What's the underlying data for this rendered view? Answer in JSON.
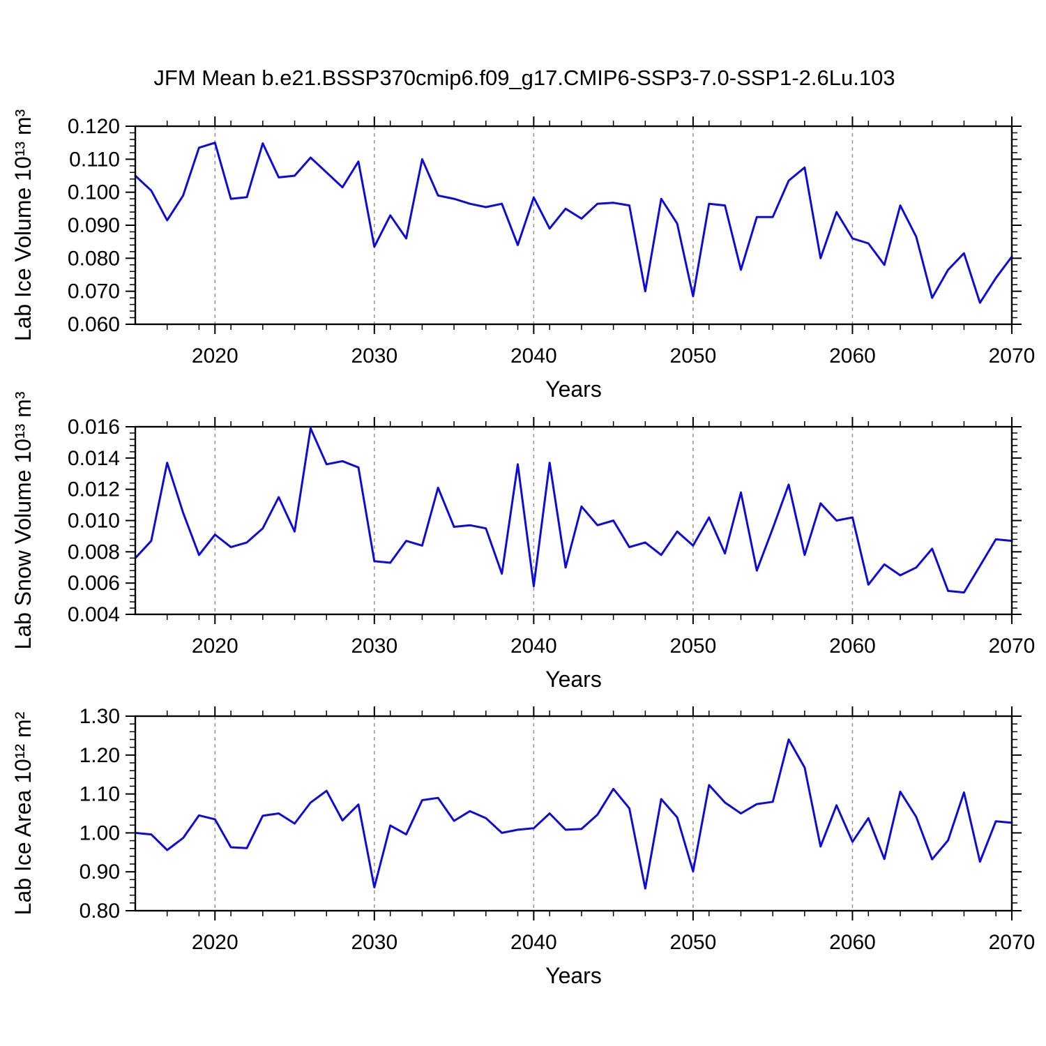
{
  "page": {
    "title": "JFM Mean b.e21.BSSP370cmip6.f09_g17.CMIP6-SSP3-7.0-SSP1-2.6Lu.103"
  },
  "colors": {
    "line": "#0b0bdd",
    "grid": "#999999",
    "axis": "#000000",
    "background": "#ffffff"
  },
  "chart_data": [
    {
      "type": "line",
      "ylabel": "Lab Ice Volume 10¹³ m³",
      "xlabel": "Years",
      "xlim": [
        2015,
        2070
      ],
      "ylim": [
        0.06,
        0.12
      ],
      "ytick_labels": [
        "0.060",
        "0.070",
        "0.080",
        "0.090",
        "0.100",
        "0.110",
        "0.120"
      ],
      "ytick_minor_step": 0.002,
      "xtick_labels": [
        "2020",
        "2030",
        "2040",
        "2050",
        "2060",
        "2070"
      ],
      "xtick_minor_step": 2,
      "grid_decades": [
        2020,
        2030,
        2040,
        2050,
        2060
      ],
      "legend": "none",
      "x": [
        2015,
        2016,
        2017,
        2018,
        2019,
        2020,
        2021,
        2022,
        2023,
        2024,
        2025,
        2026,
        2027,
        2028,
        2029,
        2030,
        2031,
        2032,
        2033,
        2034,
        2035,
        2036,
        2037,
        2038,
        2039,
        2040,
        2041,
        2042,
        2043,
        2044,
        2045,
        2046,
        2047,
        2048,
        2049,
        2050,
        2051,
        2052,
        2053,
        2054,
        2055,
        2056,
        2057,
        2058,
        2059,
        2060,
        2061,
        2062,
        2063,
        2064,
        2065,
        2066,
        2067,
        2068,
        2069,
        2070
      ],
      "values": [
        0.105,
        0.1005,
        0.0915,
        0.099,
        0.1135,
        0.115,
        0.098,
        0.0985,
        0.1148,
        0.1045,
        0.105,
        0.1105,
        0.106,
        0.1015,
        0.1093,
        0.0835,
        0.093,
        0.086,
        0.11,
        0.099,
        0.098,
        0.0965,
        0.0955,
        0.0965,
        0.084,
        0.0984,
        0.089,
        0.095,
        0.092,
        0.0965,
        0.0968,
        0.096,
        0.07,
        0.098,
        0.0905,
        0.0685,
        0.0965,
        0.096,
        0.0765,
        0.0925,
        0.0925,
        0.1035,
        0.1075,
        0.08,
        0.094,
        0.086,
        0.0845,
        0.078,
        0.096,
        0.0865,
        0.068,
        0.0765,
        0.0815,
        0.0665,
        0.074,
        0.0805
      ]
    },
    {
      "type": "line",
      "ylabel": "Lab Snow Volume 10¹³ m³",
      "xlabel": "Years",
      "xlim": [
        2015,
        2070
      ],
      "ylim": [
        0.004,
        0.016
      ],
      "ytick_labels": [
        "0.004",
        "0.006",
        "0.008",
        "0.010",
        "0.012",
        "0.014",
        "0.016"
      ],
      "ytick_minor_step": 0.0004,
      "xtick_labels": [
        "2020",
        "2030",
        "2040",
        "2050",
        "2060",
        "2070"
      ],
      "xtick_minor_step": 2,
      "grid_decades": [
        2020,
        2030,
        2040,
        2050,
        2060
      ],
      "legend": "none",
      "x": [
        2015,
        2016,
        2017,
        2018,
        2019,
        2020,
        2021,
        2022,
        2023,
        2024,
        2025,
        2026,
        2027,
        2028,
        2029,
        2030,
        2031,
        2032,
        2033,
        2034,
        2035,
        2036,
        2037,
        2038,
        2039,
        2040,
        2041,
        2042,
        2043,
        2044,
        2045,
        2046,
        2047,
        2048,
        2049,
        2050,
        2051,
        2052,
        2053,
        2054,
        2055,
        2056,
        2057,
        2058,
        2059,
        2060,
        2061,
        2062,
        2063,
        2064,
        2065,
        2066,
        2067,
        2068,
        2069,
        2070
      ],
      "values": [
        0.0076,
        0.0087,
        0.0137,
        0.0105,
        0.0078,
        0.0091,
        0.0083,
        0.0086,
        0.0095,
        0.0115,
        0.0093,
        0.0159,
        0.0136,
        0.0138,
        0.0134,
        0.0074,
        0.0073,
        0.0087,
        0.0084,
        0.0121,
        0.0096,
        0.0097,
        0.0095,
        0.0066,
        0.0136,
        0.0058,
        0.0137,
        0.007,
        0.0109,
        0.0097,
        0.01,
        0.0083,
        0.0086,
        0.0078,
        0.0093,
        0.0084,
        0.0102,
        0.0079,
        0.0118,
        0.0068,
        0.0095,
        0.0123,
        0.0078,
        0.0111,
        0.01,
        0.0102,
        0.0059,
        0.0072,
        0.0065,
        0.007,
        0.0082,
        0.0055,
        0.0054,
        0.0071,
        0.0088,
        0.0087
      ]
    },
    {
      "type": "line",
      "ylabel": "Lab Ice Area 10¹² m²",
      "xlabel": "Years",
      "xlim": [
        2015,
        2070
      ],
      "ylim": [
        0.8,
        1.3
      ],
      "ytick_labels": [
        "0.80",
        "0.90",
        "1.00",
        "1.10",
        "1.20",
        "1.30"
      ],
      "ytick_minor_step": 0.02,
      "xtick_labels": [
        "2020",
        "2030",
        "2040",
        "2050",
        "2060",
        "2070"
      ],
      "xtick_minor_step": 2,
      "grid_decades": [
        2020,
        2030,
        2040,
        2050,
        2060
      ],
      "legend": "none",
      "x": [
        2015,
        2016,
        2017,
        2018,
        2019,
        2020,
        2021,
        2022,
        2023,
        2024,
        2025,
        2026,
        2027,
        2028,
        2029,
        2030,
        2031,
        2032,
        2033,
        2034,
        2035,
        2036,
        2037,
        2038,
        2039,
        2040,
        2041,
        2042,
        2043,
        2044,
        2045,
        2046,
        2047,
        2048,
        2049,
        2050,
        2051,
        2052,
        2053,
        2054,
        2055,
        2056,
        2057,
        2058,
        2059,
        2060,
        2061,
        2062,
        2063,
        2064,
        2065,
        2066,
        2067,
        2068,
        2069,
        2070
      ],
      "values": [
        1.0,
        0.996,
        0.956,
        0.987,
        1.045,
        1.035,
        0.963,
        0.961,
        1.044,
        1.05,
        1.024,
        1.078,
        1.108,
        1.032,
        1.073,
        0.86,
        1.019,
        0.996,
        1.084,
        1.09,
        1.031,
        1.056,
        1.038,
        1.0,
        1.008,
        1.012,
        1.05,
        1.008,
        1.01,
        1.047,
        1.113,
        1.063,
        0.857,
        1.087,
        1.04,
        0.901,
        1.123,
        1.078,
        1.05,
        1.074,
        1.08,
        1.24,
        1.168,
        0.965,
        1.071,
        0.977,
        1.038,
        0.933,
        1.106,
        1.041,
        0.932,
        0.981,
        1.104,
        0.926,
        1.03,
        1.026
      ]
    }
  ]
}
